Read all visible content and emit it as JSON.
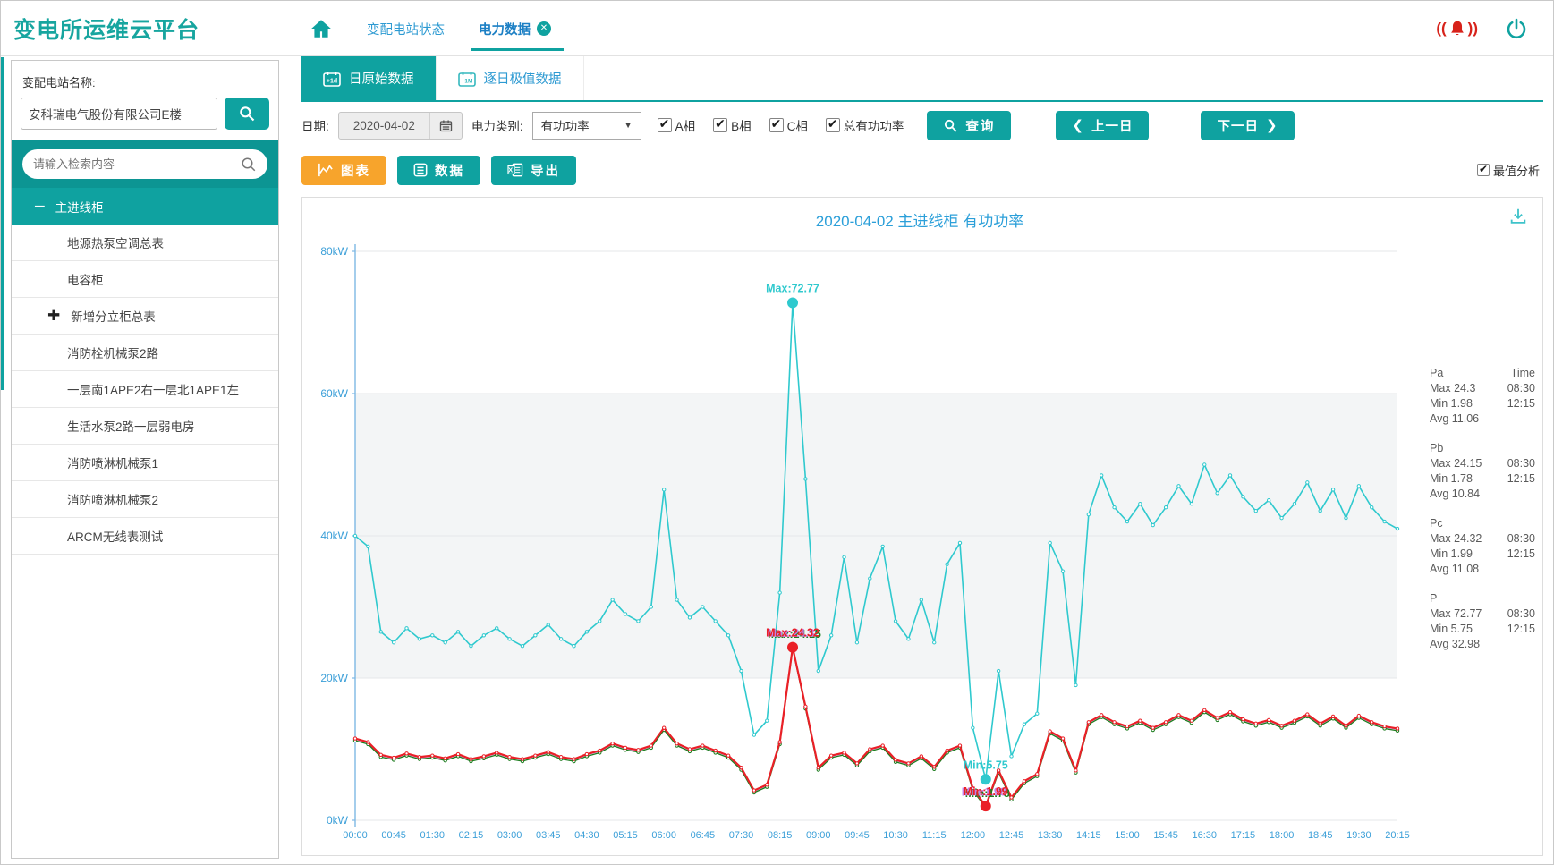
{
  "app": {
    "title": "变电所运维云平台"
  },
  "header": {
    "nav_link": "变配电站状态",
    "active_tab": "电力数据"
  },
  "sidebar": {
    "station_label": "变配电站名称:",
    "station_value": "安科瑞电气股份有限公司E楼",
    "search_placeholder": "请输入检索内容",
    "tree": [
      {
        "label": "主进线柜"
      },
      {
        "label": "地源热泵空调总表"
      },
      {
        "label": "电容柜"
      },
      {
        "label": "新增分立柜总表"
      },
      {
        "label": "消防栓机械泵2路"
      },
      {
        "label": "一层南1APE2右一层北1APE1左"
      },
      {
        "label": "生活水泵2路一层弱电房"
      },
      {
        "label": "消防喷淋机械泵1"
      },
      {
        "label": "消防喷淋机械泵2"
      },
      {
        "label": "ARCM无线表测试"
      }
    ]
  },
  "toolbar": {
    "tabs": [
      {
        "label": "日原始数据",
        "badge": "+1d"
      },
      {
        "label": "逐日极值数据",
        "badge": "+1M"
      }
    ],
    "date_label": "日期:",
    "date_value": "2020-04-02",
    "category_label": "电力类别:",
    "category_value": "有功功率",
    "checkboxes": [
      {
        "label": "A相",
        "checked": true
      },
      {
        "label": "B相",
        "checked": true
      },
      {
        "label": "C相",
        "checked": true
      },
      {
        "label": "总有功功率",
        "checked": true
      }
    ],
    "query_button": "查询",
    "prev_button": "上一日",
    "next_button": "下一日",
    "chart_button": "图表",
    "data_button": "数据",
    "export_button": "导出",
    "extreme_checkbox": "最值分析"
  },
  "chart_data": {
    "type": "line",
    "title": "2020-04-02  主进线柜  有功功率",
    "ylim": [
      0,
      80
    ],
    "yticks": [
      "0kW",
      "20kW",
      "40kW",
      "60kW",
      "80kW"
    ],
    "axis_color": "#3b9fd8",
    "band_colors": [
      "#ffffff",
      "#f3f5f6",
      "#f3f5f6",
      "#ffffff"
    ],
    "x_tick_every": 3,
    "x": [
      "00:00",
      "00:15",
      "00:30",
      "00:45",
      "01:00",
      "01:15",
      "01:30",
      "01:45",
      "02:00",
      "02:15",
      "02:30",
      "02:45",
      "03:00",
      "03:15",
      "03:30",
      "03:45",
      "04:00",
      "04:15",
      "04:30",
      "04:45",
      "05:00",
      "05:15",
      "05:30",
      "05:45",
      "06:00",
      "06:15",
      "06:30",
      "06:45",
      "07:00",
      "07:15",
      "07:30",
      "07:45",
      "08:00",
      "08:15",
      "08:30",
      "08:45",
      "09:00",
      "09:15",
      "09:30",
      "09:45",
      "10:00",
      "10:15",
      "10:30",
      "10:45",
      "11:00",
      "11:15",
      "11:30",
      "11:45",
      "12:00",
      "12:15",
      "12:30",
      "12:45",
      "13:00",
      "13:15",
      "13:30",
      "13:45",
      "14:00",
      "14:15",
      "14:30",
      "14:45",
      "15:00",
      "15:15",
      "15:30",
      "15:45",
      "16:00",
      "16:15",
      "16:30",
      "16:45",
      "17:00",
      "17:15",
      "17:30",
      "17:45",
      "18:00",
      "18:15",
      "18:30",
      "18:45",
      "19:00",
      "19:15",
      "19:30",
      "19:45",
      "20:00",
      "20:15"
    ],
    "series": [
      {
        "name": "Pa",
        "color": "#c57fe8",
        "width": 1.3,
        "values": [
          11.4,
          10.9,
          9.1,
          8.7,
          9.3,
          8.8,
          9.0,
          8.6,
          9.2,
          8.5,
          8.9,
          9.4,
          8.8,
          8.5,
          9.0,
          9.5,
          8.8,
          8.5,
          9.2,
          9.7,
          10.7,
          10.1,
          9.8,
          10.4,
          12.9,
          10.7,
          9.9,
          10.4,
          9.7,
          9.0,
          7.3,
          4.1,
          4.9,
          10.9,
          24.3,
          15.9,
          7.3,
          9.0,
          9.4,
          7.9,
          9.9,
          10.4,
          8.4,
          7.9,
          8.9,
          7.4,
          9.7,
          10.4,
          4.4,
          1.98,
          6.9,
          3.1,
          5.4,
          6.4,
          12.4,
          11.4,
          6.9,
          13.7,
          14.7,
          13.7,
          13.1,
          13.9,
          12.9,
          13.7,
          14.7,
          13.9,
          15.4,
          14.3,
          15.1,
          14.1,
          13.5,
          14.0,
          13.2,
          13.9,
          14.8,
          13.5,
          14.5,
          13.2,
          14.6,
          13.7,
          13.1,
          12.8
        ]
      },
      {
        "name": "Pb",
        "color": "#1d7d1f",
        "width": 1.3,
        "values": [
          11.2,
          10.7,
          8.9,
          8.5,
          9.1,
          8.6,
          8.8,
          8.4,
          9.0,
          8.3,
          8.7,
          9.2,
          8.6,
          8.3,
          8.8,
          9.3,
          8.6,
          8.3,
          9.0,
          9.5,
          10.5,
          9.9,
          9.6,
          10.2,
          12.7,
          10.5,
          9.7,
          10.2,
          9.5,
          8.8,
          7.1,
          3.9,
          4.7,
          10.7,
          24.15,
          15.7,
          7.1,
          8.8,
          9.2,
          7.7,
          9.7,
          10.2,
          8.2,
          7.7,
          8.7,
          7.2,
          9.5,
          10.2,
          4.2,
          1.78,
          6.7,
          2.9,
          5.2,
          6.2,
          12.2,
          11.2,
          6.7,
          13.5,
          14.5,
          13.5,
          12.9,
          13.7,
          12.7,
          13.5,
          14.5,
          13.7,
          15.2,
          14.1,
          14.9,
          13.9,
          13.3,
          13.8,
          13.0,
          13.7,
          14.6,
          13.3,
          14.3,
          13.0,
          14.4,
          13.5,
          12.9,
          12.6
        ]
      },
      {
        "name": "Pc",
        "color": "#ea2027",
        "width": 2.2,
        "values": [
          11.5,
          11.0,
          9.2,
          8.8,
          9.4,
          8.9,
          9.1,
          8.7,
          9.3,
          8.6,
          9.0,
          9.5,
          8.9,
          8.6,
          9.1,
          9.6,
          8.9,
          8.6,
          9.3,
          9.8,
          10.8,
          10.2,
          9.9,
          10.5,
          13.0,
          10.8,
          10.0,
          10.5,
          9.8,
          9.1,
          7.4,
          4.2,
          5.0,
          11.0,
          24.32,
          16.0,
          7.4,
          9.1,
          9.5,
          8.0,
          10.0,
          10.5,
          8.5,
          8.0,
          9.0,
          7.5,
          9.8,
          10.5,
          4.5,
          1.99,
          7.0,
          3.2,
          5.5,
          6.5,
          12.5,
          11.5,
          7.0,
          13.8,
          14.8,
          13.8,
          13.2,
          14.0,
          13.0,
          13.8,
          14.8,
          14.0,
          15.5,
          14.4,
          15.2,
          14.2,
          13.6,
          14.1,
          13.3,
          14.0,
          14.9,
          13.6,
          14.6,
          13.3,
          14.7,
          13.8,
          13.2,
          12.9
        ]
      },
      {
        "name": "P",
        "color": "#2fc9ce",
        "width": 1.6,
        "values": [
          40.0,
          38.5,
          26.5,
          25.0,
          27.0,
          25.5,
          26.0,
          25.0,
          26.5,
          24.5,
          26.0,
          27.0,
          25.5,
          24.5,
          26.0,
          27.5,
          25.5,
          24.5,
          26.5,
          28.0,
          31.0,
          29.0,
          28.0,
          30.0,
          46.5,
          31.0,
          28.5,
          30.0,
          28.0,
          26.0,
          21.0,
          12.0,
          14.0,
          32.0,
          72.77,
          48.0,
          21.0,
          26.0,
          37.0,
          25.0,
          34.0,
          38.5,
          28.0,
          25.5,
          31.0,
          25.0,
          36.0,
          39.0,
          13.0,
          5.75,
          21.0,
          9.0,
          13.5,
          15.0,
          39.0,
          35.0,
          19.0,
          43.0,
          48.5,
          44.0,
          42.0,
          44.5,
          41.5,
          44.0,
          47.0,
          44.5,
          50.0,
          46.0,
          48.5,
          45.5,
          43.5,
          45.0,
          42.5,
          44.5,
          47.5,
          43.5,
          46.5,
          42.5,
          47.0,
          44.0,
          42.0,
          41.0
        ]
      }
    ],
    "annotations": [
      {
        "series": "Pb",
        "index": 34,
        "label": "Max:24.15",
        "color": "#1d7d1f",
        "dx": 2,
        "dot": false
      },
      {
        "series": "Pa",
        "index": 34,
        "label": "Max:24.3",
        "color": "#c57fe8",
        "dx": -2,
        "dot": false
      },
      {
        "series": "Pc",
        "index": 34,
        "label": "Max:24.32",
        "color": "#ea2027",
        "dx": 0,
        "dot": true
      },
      {
        "series": "P",
        "index": 34,
        "label": "Max:72.77",
        "color": "#2fc9ce",
        "dx": 0,
        "dot": true
      },
      {
        "series": "Pb",
        "index": 49,
        "label": "Min:1.78",
        "color": "#1d7d1f",
        "dx": 2,
        "dot": false
      },
      {
        "series": "Pa",
        "index": 49,
        "label": "Min:1.98",
        "color": "#c57fe8",
        "dx": -2,
        "dot": false
      },
      {
        "series": "Pc",
        "index": 49,
        "label": "Min:1.99",
        "color": "#ea2027",
        "dx": 0,
        "dot": true
      },
      {
        "series": "P",
        "index": 49,
        "label": "Min:5.75",
        "color": "#2fc9ce",
        "dx": 0,
        "dot": true
      }
    ],
    "legend": {
      "time_header": "Time",
      "items": [
        {
          "name": "Pa",
          "color": "#c57fe8",
          "max_text": "Max 24.3",
          "max_time": "08:30",
          "min_text": "Min 1.98",
          "min_time": "12:15",
          "avg_text": "Avg 11.06"
        },
        {
          "name": "Pb",
          "color": "#1d7d1f",
          "max_text": "Max 24.15",
          "max_time": "08:30",
          "min_text": "Min 1.78",
          "min_time": "12:15",
          "avg_text": "Avg 10.84"
        },
        {
          "name": "Pc",
          "color": "#ea2027",
          "max_text": "Max 24.32",
          "max_time": "08:30",
          "min_text": "Min 1.99",
          "min_time": "12:15",
          "avg_text": "Avg 11.08"
        },
        {
          "name": "P",
          "color": "#2fc9ce",
          "max_text": "Max 72.77",
          "max_time": "08:30",
          "min_text": "Min 5.75",
          "min_time": "12:15",
          "avg_text": "Avg 32.98"
        }
      ]
    }
  }
}
